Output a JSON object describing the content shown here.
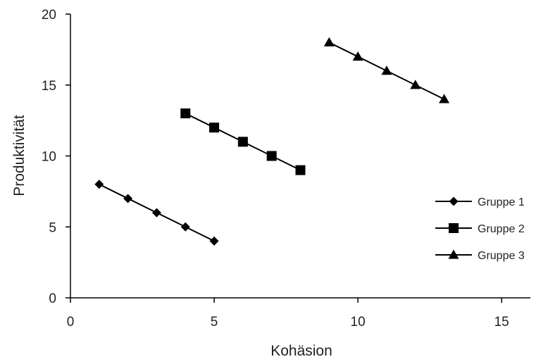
{
  "chart_data": {
    "type": "line",
    "xlabel": "Kohäsion",
    "ylabel": "Produktivität",
    "xlim": [
      0,
      16
    ],
    "ylim": [
      0,
      20
    ],
    "x_ticks": [
      0,
      5,
      10,
      15
    ],
    "y_ticks": [
      0,
      5,
      10,
      15,
      20
    ],
    "grid": false,
    "legend_position": "right",
    "line_color": "#000000",
    "series": [
      {
        "name": "Gruppe 1",
        "marker": "diamond",
        "x": [
          1,
          2,
          3,
          4,
          5
        ],
        "values": [
          8,
          7,
          6,
          5,
          4
        ]
      },
      {
        "name": "Gruppe 2",
        "marker": "square",
        "x": [
          4,
          5,
          6,
          7,
          8
        ],
        "values": [
          13,
          12,
          11,
          10,
          9
        ]
      },
      {
        "name": "Gruppe 3",
        "marker": "triangle",
        "x": [
          9,
          10,
          11,
          12,
          13
        ],
        "values": [
          18,
          17,
          16,
          15,
          14
        ]
      }
    ]
  }
}
